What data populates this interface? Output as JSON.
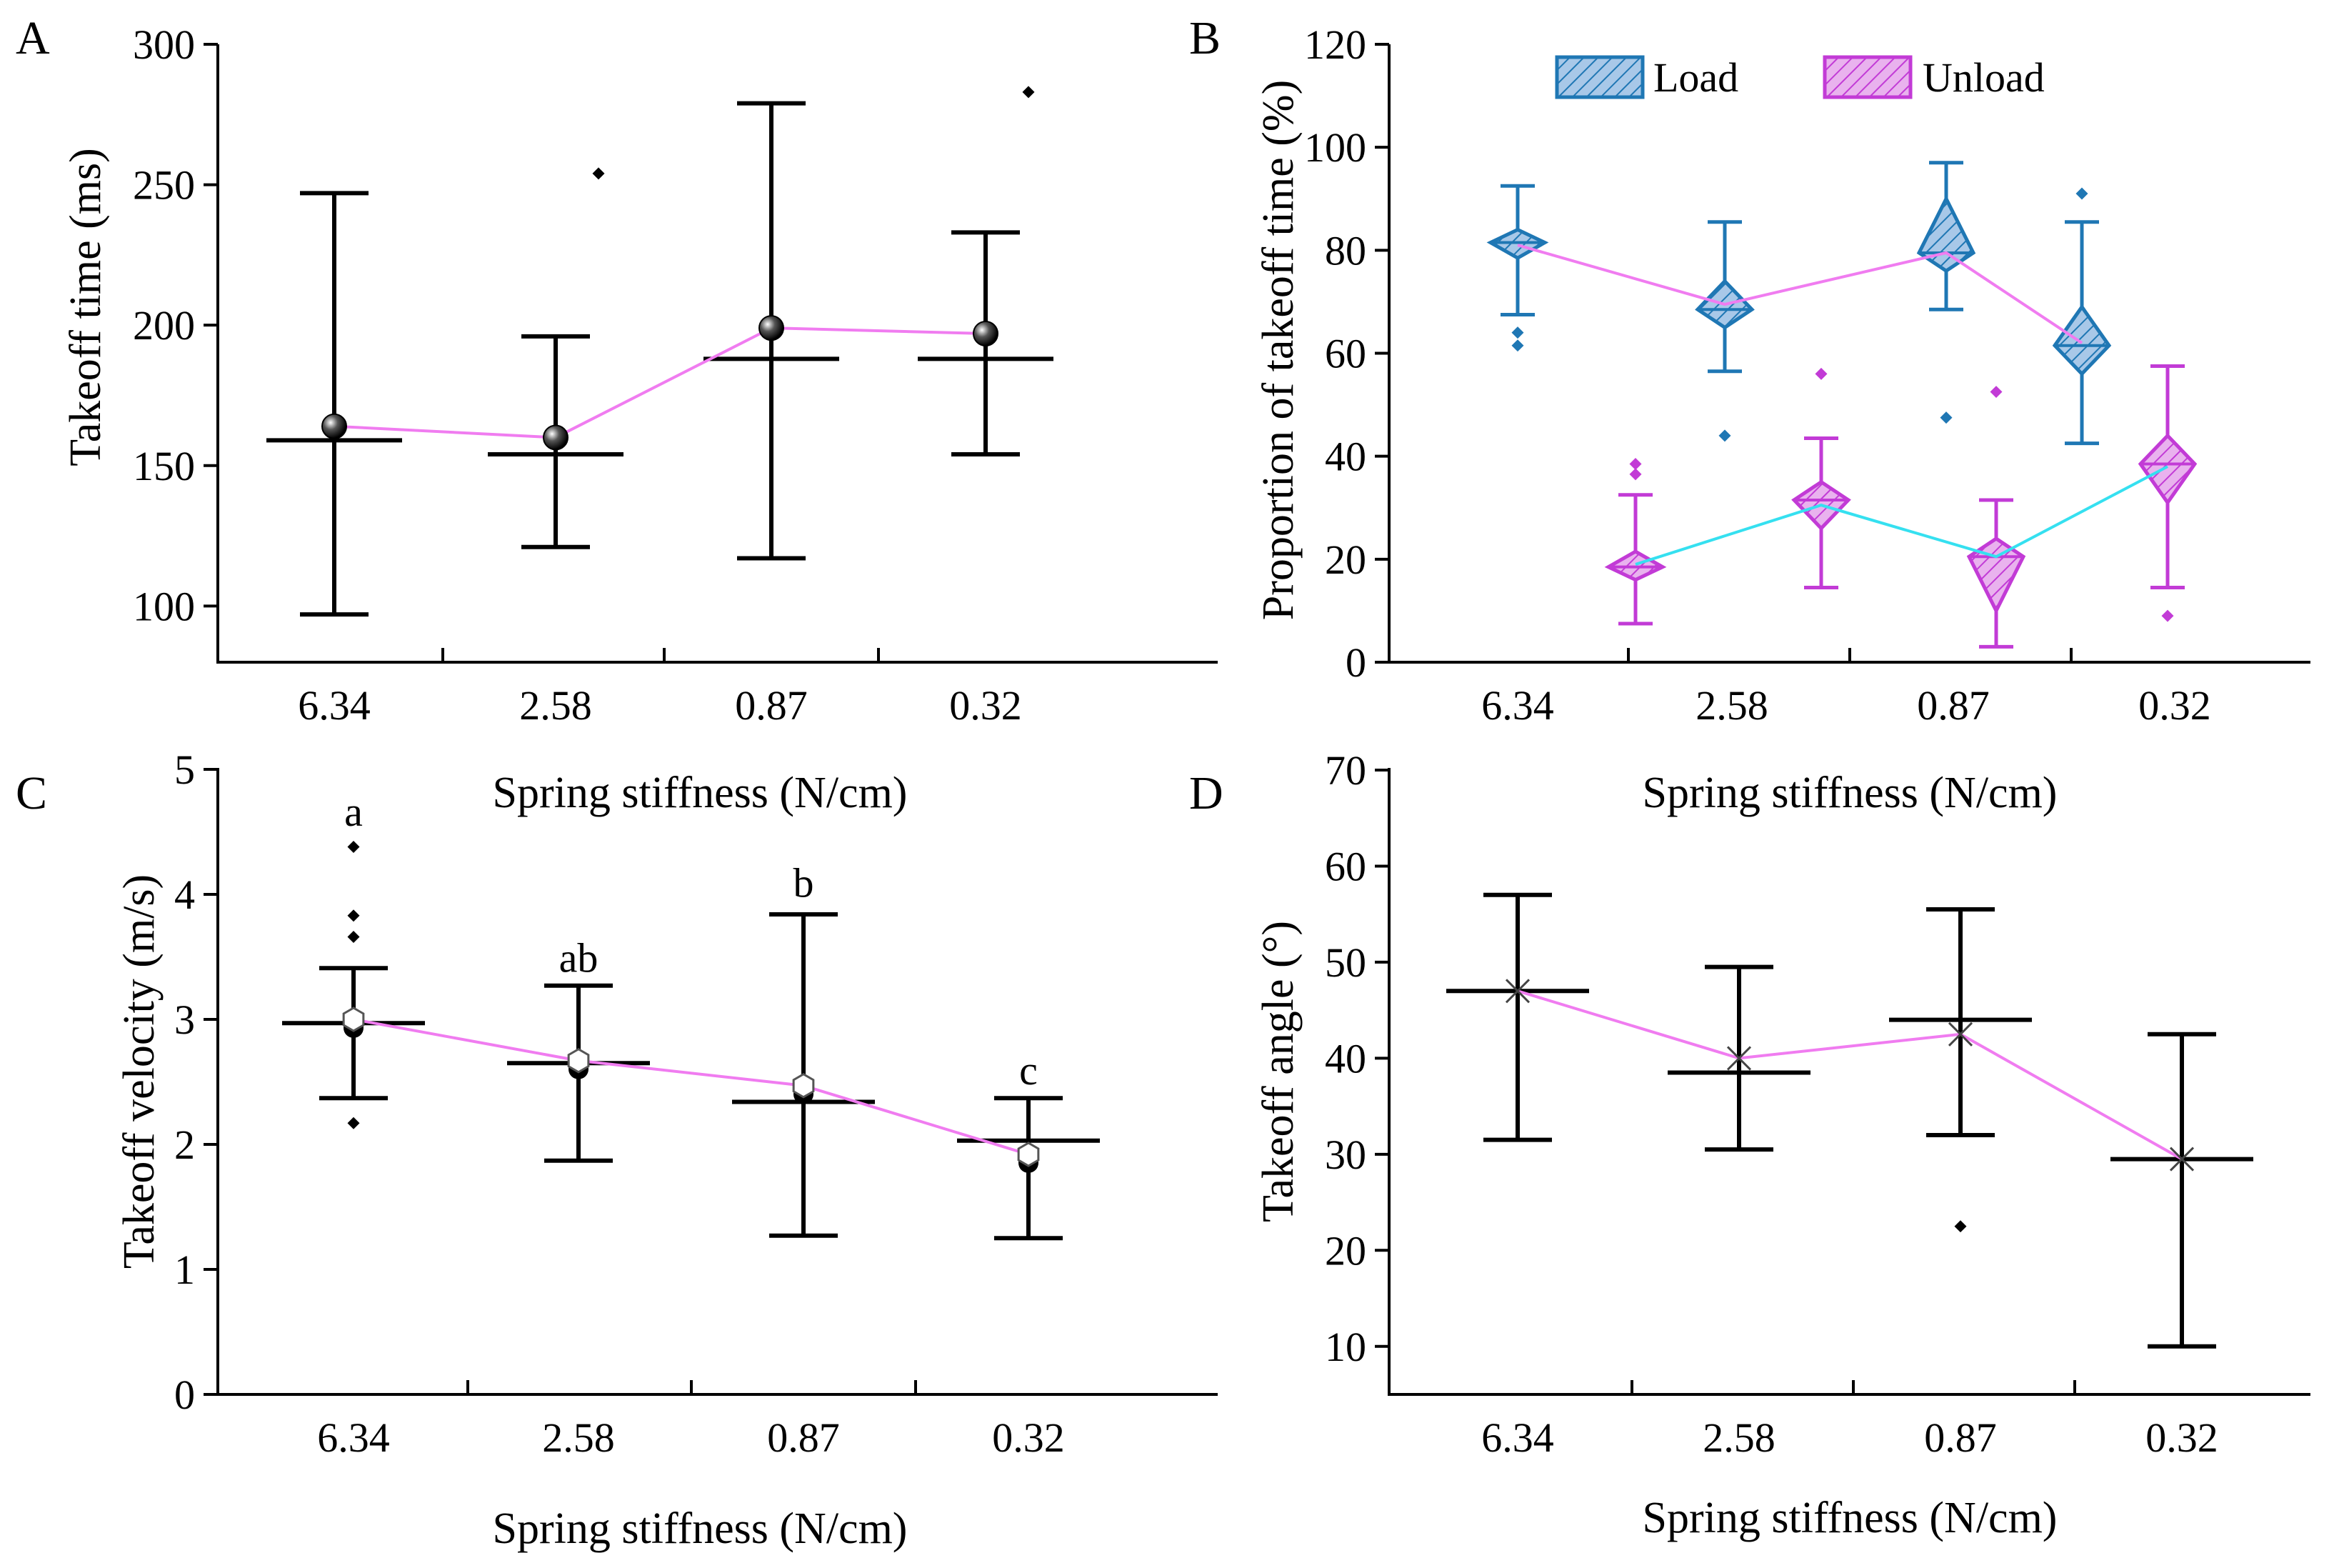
{
  "chart_data": [
    {
      "panel": "A",
      "type": "box",
      "xlabel": "Spring stiffness (N/cm)",
      "ylabel": "Takeoff time (ms)",
      "ylim": [
        80,
        300
      ],
      "yticks": [
        100,
        150,
        200,
        250,
        300
      ],
      "categories": [
        "6.34",
        "2.58",
        "0.87",
        "0.32"
      ],
      "whisker_low": [
        97,
        121,
        117,
        154
      ],
      "whisker_high": [
        247,
        196,
        279,
        233
      ],
      "median": [
        159,
        154,
        188,
        188
      ],
      "mean": [
        164,
        160,
        199,
        197
      ],
      "outliers": [
        [],
        [
          254
        ],
        [],
        [
          283
        ]
      ],
      "mean_line_color": "#f07cf0"
    },
    {
      "panel": "B",
      "type": "box",
      "xlabel": "Spring stiffness (N/cm)",
      "ylabel": "Proportion of takeoff time (%)",
      "ylim": [
        0,
        120
      ],
      "yticks": [
        0,
        20,
        40,
        60,
        80,
        100,
        120
      ],
      "categories": [
        "6.34",
        "2.58",
        "0.87",
        "0.32"
      ],
      "legend": [
        "Load",
        "Unload"
      ],
      "series": [
        {
          "name": "Load",
          "color": "#1f77b4",
          "fill": "#a8c8e8",
          "whisker_low": [
            67.5,
            56.5,
            68.5,
            42.5
          ],
          "whisker_high": [
            92.5,
            85.5,
            97,
            85.5
          ],
          "q1": [
            78.5,
            65,
            76,
            56
          ],
          "q3": [
            84,
            74,
            90,
            69
          ],
          "median": [
            81.5,
            68.5,
            79.5,
            61.5
          ],
          "mean": [
            81,
            69.5,
            79.5,
            62
          ],
          "outliers": [
            [
              64,
              61.5
            ],
            [
              44
            ],
            [
              47.5
            ],
            [
              91
            ]
          ]
        },
        {
          "name": "Unload",
          "color": "#c23bd6",
          "fill": "#e9b2ee",
          "whisker_low": [
            7.5,
            14.5,
            3,
            14.5
          ],
          "whisker_high": [
            32.5,
            43.5,
            31.5,
            57.5
          ],
          "q1": [
            16,
            26,
            10,
            31
          ],
          "q3": [
            21.5,
            35,
            24,
            44
          ],
          "median": [
            18.5,
            31.5,
            20.5,
            38.5
          ],
          "mean": [
            19,
            30.5,
            20.5,
            38
          ],
          "outliers": [
            [
              38.5,
              36.5
            ],
            [
              56
            ],
            [
              52.5
            ],
            [
              9
            ]
          ]
        }
      ],
      "load_mean_line_color": "#f07cf0",
      "unload_mean_line_color": "#35e0f0"
    },
    {
      "panel": "C",
      "type": "box",
      "xlabel": "Spring stiffness (N/cm)",
      "ylabel": "Takeoff velocity (m/s)",
      "ylim": [
        0,
        5
      ],
      "yticks": [
        0,
        1,
        2,
        3,
        4,
        5
      ],
      "categories": [
        "6.34",
        "2.58",
        "0.87",
        "0.32"
      ],
      "whisker_low": [
        2.37,
        1.87,
        1.27,
        1.25
      ],
      "whisker_high": [
        3.41,
        3.27,
        3.84,
        2.37
      ],
      "median": [
        2.97,
        2.65,
        2.34,
        2.03
      ],
      "mean": [
        3.0,
        2.67,
        2.47,
        1.92
      ],
      "outliers": [
        [
          4.38,
          3.83,
          3.66,
          2.17
        ],
        [],
        [],
        []
      ],
      "significance": [
        "a",
        "ab",
        "b",
        "c"
      ],
      "mean_line_color": "#f07cf0"
    },
    {
      "panel": "D",
      "type": "box",
      "xlabel": "Spring stiffness (N/cm)",
      "ylabel": "Takeoff angle (°)",
      "ylim": [
        5,
        70
      ],
      "yticks": [
        10,
        20,
        30,
        40,
        50,
        60,
        70
      ],
      "categories": [
        "6.34",
        "2.58",
        "0.87",
        "0.32"
      ],
      "whisker_low": [
        31.5,
        30.5,
        32,
        10
      ],
      "whisker_high": [
        57,
        49.5,
        55.5,
        42.5
      ],
      "median": [
        47,
        38.5,
        44,
        29.5
      ],
      "mean": [
        47,
        40,
        42.5,
        29.5
      ],
      "outliers": [
        [],
        [],
        [
          22.5
        ],
        []
      ],
      "mean_line_color": "#f07cf0"
    }
  ]
}
